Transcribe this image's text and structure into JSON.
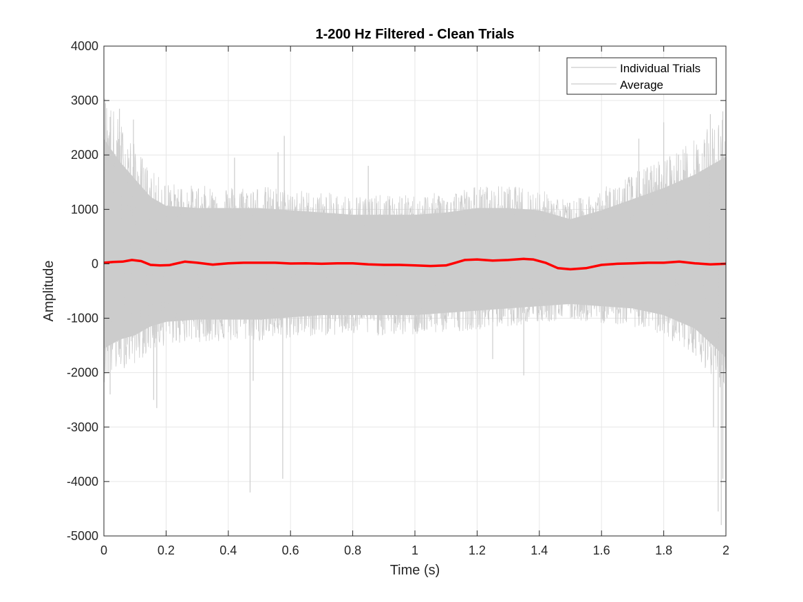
{
  "chart_data": {
    "type": "line",
    "title": "1-200 Hz Filtered - Clean Trials",
    "xlabel": "Time (s)",
    "ylabel": "Amplitude",
    "xlim": [
      0,
      2
    ],
    "ylim": [
      -5000,
      4000
    ],
    "xticks": [
      0,
      0.2,
      0.4,
      0.6,
      0.8,
      1,
      1.2,
      1.4,
      1.6,
      1.8,
      2
    ],
    "xtick_labels": [
      "0",
      "0.2",
      "0.4",
      "0.6",
      "0.8",
      "1",
      "1.2",
      "1.4",
      "1.6",
      "1.8",
      "2"
    ],
    "yticks": [
      -5000,
      -4000,
      -3000,
      -2000,
      -1000,
      0,
      1000,
      2000,
      3000,
      4000
    ],
    "ytick_labels": [
      "-5000",
      "-4000",
      "-3000",
      "-2000",
      "-1000",
      "0",
      "1000",
      "2000",
      "3000",
      "4000"
    ],
    "grid": true,
    "legend_position": "top-right",
    "legend": [
      "Individual Trials",
      "Average"
    ],
    "colors": {
      "trials": "#cccccc",
      "average": "#ff0000"
    },
    "series": [
      {
        "name": "Individual Trials",
        "style": "envelope",
        "x": [
          0,
          0.05,
          0.1,
          0.15,
          0.2,
          0.3,
          0.4,
          0.5,
          0.6,
          0.7,
          0.8,
          0.9,
          1.0,
          1.1,
          1.2,
          1.3,
          1.4,
          1.5,
          1.6,
          1.7,
          1.8,
          1.9,
          2.0
        ],
        "upper": [
          2800,
          2300,
          1900,
          1500,
          1300,
          1250,
          1250,
          1250,
          1200,
          1150,
          1100,
          1100,
          1100,
          1150,
          1250,
          1250,
          1200,
          1000,
          1200,
          1450,
          1700,
          2000,
          2400
        ],
        "lower": [
          -1900,
          -1700,
          -1600,
          -1400,
          -1300,
          -1250,
          -1250,
          -1250,
          -1200,
          -1150,
          -1150,
          -1150,
          -1150,
          -1100,
          -1050,
          -1000,
          -950,
          -900,
          -950,
          -1000,
          -1150,
          -1450,
          -2100
        ],
        "spikes": [
          {
            "x": 0.005,
            "y": 2950
          },
          {
            "x": 0.02,
            "y": 2700
          },
          {
            "x": 0.05,
            "y": 2850
          },
          {
            "x": 0.095,
            "y": 2650
          },
          {
            "x": 0.16,
            "y": -2500
          },
          {
            "x": 0.17,
            "y": -2650
          },
          {
            "x": 0.02,
            "y": -2400
          },
          {
            "x": 0.47,
            "y": -4200
          },
          {
            "x": 0.48,
            "y": -2150
          },
          {
            "x": 0.575,
            "y": -3950
          },
          {
            "x": 0.58,
            "y": 2350
          },
          {
            "x": 0.42,
            "y": 1950
          },
          {
            "x": 0.56,
            "y": 2050
          },
          {
            "x": 0.85,
            "y": 1800
          },
          {
            "x": 1.35,
            "y": -2050
          },
          {
            "x": 1.25,
            "y": -1750
          },
          {
            "x": 1.8,
            "y": 2600
          },
          {
            "x": 1.72,
            "y": 2300
          },
          {
            "x": 1.95,
            "y": 2750
          },
          {
            "x": 1.99,
            "y": 2800
          },
          {
            "x": 1.985,
            "y": -4800
          },
          {
            "x": 1.975,
            "y": -4550
          },
          {
            "x": 1.99,
            "y": -3950
          },
          {
            "x": 1.96,
            "y": -3000
          }
        ]
      },
      {
        "name": "Average",
        "style": "line",
        "x": [
          0,
          0.03,
          0.06,
          0.09,
          0.12,
          0.15,
          0.18,
          0.21,
          0.26,
          0.3,
          0.35,
          0.4,
          0.45,
          0.5,
          0.55,
          0.6,
          0.65,
          0.7,
          0.75,
          0.8,
          0.85,
          0.9,
          0.95,
          1.0,
          1.05,
          1.1,
          1.13,
          1.16,
          1.2,
          1.25,
          1.3,
          1.35,
          1.38,
          1.42,
          1.46,
          1.5,
          1.55,
          1.6,
          1.65,
          1.7,
          1.75,
          1.8,
          1.85,
          1.9,
          1.95,
          2.0
        ],
        "y": [
          20,
          35,
          40,
          70,
          50,
          -20,
          -30,
          -25,
          40,
          20,
          -15,
          10,
          20,
          20,
          20,
          5,
          10,
          0,
          10,
          10,
          -10,
          -20,
          -20,
          -30,
          -40,
          -30,
          20,
          70,
          80,
          60,
          70,
          90,
          80,
          20,
          -80,
          -100,
          -80,
          -20,
          0,
          10,
          20,
          20,
          40,
          10,
          -10,
          0
        ]
      }
    ]
  }
}
